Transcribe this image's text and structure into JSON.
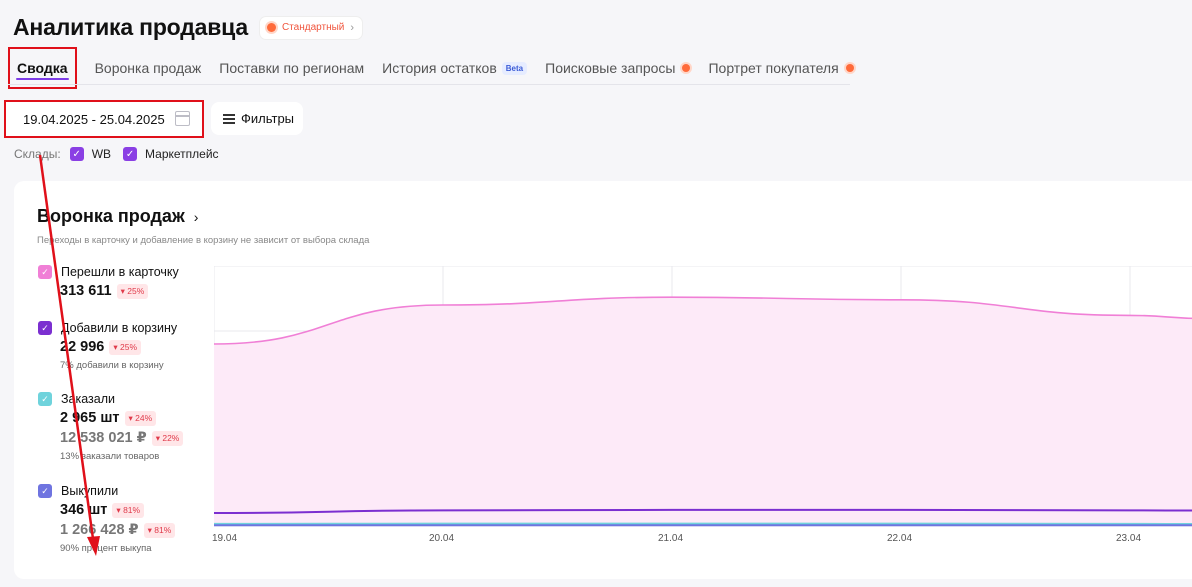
{
  "header": {
    "title": "Аналитика продавца",
    "plan_badge": "Стандартный",
    "plan_chevron": "›"
  },
  "tabs": [
    {
      "label": "Сводка",
      "active": true
    },
    {
      "label": "Воронка продаж"
    },
    {
      "label": "Поставки по регионам"
    },
    {
      "label": "История остатков",
      "badge": "Beta"
    },
    {
      "label": "Поисковые запросы",
      "dot": true
    },
    {
      "label": "Портрет покупателя",
      "dot": true
    }
  ],
  "toolbar": {
    "date_range": "19.04.2025 - 25.04.2025",
    "filters_label": "Фильтры"
  },
  "warehouses": {
    "label": "Склады:",
    "items": [
      {
        "label": "WB",
        "checked": true
      },
      {
        "label": "Маркетплейс",
        "checked": true
      }
    ]
  },
  "funnel_card": {
    "title": "Воронка продаж",
    "title_chevron": "›",
    "subtitle": "Переходы в карточку и добавление в корзину не зависит от выбора склада",
    "metrics": [
      {
        "label": "Перешли в карточку",
        "color": "#f07fd6",
        "value": "313 611",
        "change": "25%"
      },
      {
        "label": "Добавили в корзину",
        "color": "#7b2fd0",
        "value": "22 996",
        "change": "25%",
        "note": "7% добавили в корзину"
      },
      {
        "label": "Заказали",
        "color": "#6fd3dc",
        "value": "2 965 шт",
        "change": "24%",
        "value2": "12 538 021 ₽",
        "change2": "22%",
        "note": "13% заказали товаров"
      },
      {
        "label": "Выкупили",
        "color": "#6f74e0",
        "value": "346 шт",
        "change": "81%",
        "value2": "1 266 428 ₽",
        "change2": "81%",
        "note": "90% процент выкупа"
      }
    ]
  },
  "chart_data": {
    "type": "area",
    "x": [
      "19.04",
      "20.04",
      "21.04",
      "22.04",
      "23.04"
    ],
    "series": [
      {
        "color": "#f07fd6",
        "values": [
          0.7,
          0.85,
          0.88,
          0.87,
          0.81
        ]
      },
      {
        "color": "#7b2fd0",
        "values": [
          0.05,
          0.06,
          0.062,
          0.062,
          0.06
        ]
      },
      {
        "color": "#6fd3dc",
        "values": [
          0.008,
          0.009,
          0.009,
          0.009,
          0.008
        ]
      },
      {
        "color": "#6f74e0",
        "values": [
          0.003,
          0.003,
          0.003,
          0.003,
          0.003
        ]
      }
    ],
    "ylim": [
      0,
      1
    ],
    "grid": true
  }
}
